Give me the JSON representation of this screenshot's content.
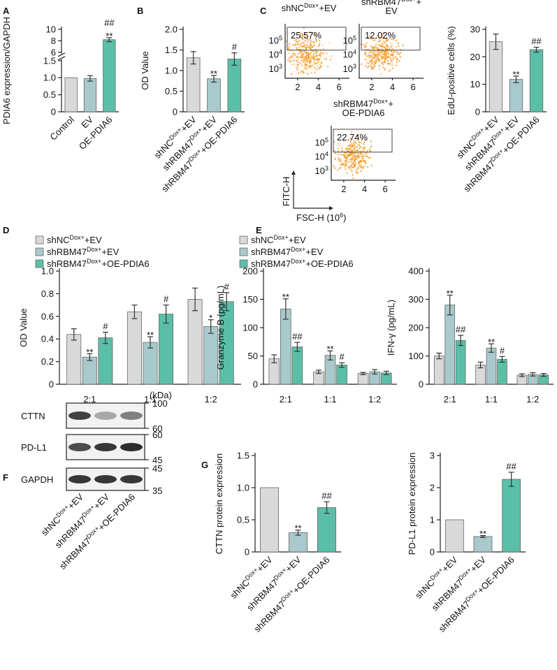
{
  "chart_data": [
    {
      "type": "bar",
      "panel": "A",
      "ylabel": "PDIA6 expression/GAPDH",
      "categories": [
        "Control",
        "EV",
        "OE-PDIA6"
      ],
      "values": [
        1,
        0.98,
        8.2
      ],
      "errors": [
        null,
        0.08,
        0.35
      ],
      "annotations": [
        null,
        null,
        [
          "##",
          "**"
        ]
      ],
      "colors": [
        "#d9d9d9",
        "#a9c9cc",
        "#5bbfa8"
      ],
      "ylim": [
        0,
        10
      ],
      "ybreak": [
        1.5,
        6
      ],
      "yticks": [
        0,
        0.5,
        {
          "value": 1,
          "label": "1.0"
        },
        1.5,
        6,
        8,
        10
      ]
    },
    {
      "type": "bar",
      "panel": "B",
      "ylabel": "OD Value",
      "categories": [
        [
          "shNC",
          "Dox+",
          "+EV"
        ],
        [
          "shRBM47",
          "Dox+",
          "+EV"
        ],
        [
          "shRBM47",
          "Dox+",
          "+OE-PDIA6"
        ]
      ],
      "values": [
        1.31,
        0.8,
        1.28
      ],
      "errors": [
        0.15,
        0.08,
        0.15
      ],
      "annotations": [
        null,
        "**",
        "#"
      ],
      "colors": [
        "#d9d9d9",
        "#a9c9cc",
        "#5bbfa8"
      ],
      "ylim": [
        0,
        2
      ],
      "yticks": [
        0,
        0.5,
        {
          "value": 1,
          "label": "1.0"
        },
        1.5,
        {
          "value": 2,
          "label": "2.0"
        }
      ]
    },
    {
      "type": "bar",
      "panel": "C",
      "ylabel": "EdU-positive cells (%)",
      "categories": [
        [
          "shNC",
          "Dox+",
          "+EV"
        ],
        [
          "shRBM47",
          "Dox+",
          "+EV"
        ],
        [
          "shRBM47",
          "Dox+",
          "+OE-PDIA6"
        ]
      ],
      "values": [
        25.5,
        11.8,
        22.6
      ],
      "errors": [
        2.8,
        1.2,
        0.9
      ],
      "annotations": [
        null,
        "**",
        "##"
      ],
      "colors": [
        "#d9d9d9",
        "#a9c9cc",
        "#5bbfa8"
      ],
      "ylim": [
        0,
        30
      ],
      "yticks": [
        0,
        10,
        20,
        30
      ],
      "flow_plots": [
        {
          "title": [
            [
              "shNC",
              "Dox+",
              "+EV"
            ]
          ],
          "percent": "25.57%"
        },
        {
          "title": [
            [
              "shRBM47",
              "Dox+",
              "+"
            ],
            [
              "EV"
            ]
          ],
          "percent": "12.02%"
        },
        {
          "title": [
            [
              "shRBM47",
              "Dox+",
              "+"
            ],
            [
              "OE-PDIA6"
            ]
          ],
          "percent": "22.74%"
        }
      ],
      "flow_yticks": [
        [
          "10",
          "3"
        ],
        [
          "10",
          "4"
        ],
        [
          "10",
          "5"
        ]
      ],
      "flow_xticks": [
        2,
        4,
        6
      ],
      "flow_xlim": [
        0.8,
        7
      ],
      "flow_xlabel": [
        "FSC-H (10",
        "6",
        ")"
      ],
      "flow_ylabel": "FITC-H"
    },
    {
      "type": "grouped-bar",
      "panel": "D",
      "ylabel": "OD Value",
      "categories": [
        "2:1",
        "1:1",
        "1:2"
      ],
      "ylim": [
        0,
        1
      ],
      "yticks": [
        0,
        0.2,
        0.4,
        0.6,
        0.8,
        {
          "value": 1,
          "label": "1.0"
        }
      ],
      "series": [
        {
          "name": [
            "shNC",
            "Dox+",
            "+EV"
          ],
          "color": "#d9d9d9",
          "values": [
            0.44,
            0.64,
            0.75
          ],
          "errors": [
            0.05,
            0.06,
            0.1
          ],
          "annotations": [
            null,
            null,
            null
          ]
        },
        {
          "name": [
            "shRBM47",
            "Dox+",
            "+EV"
          ],
          "color": "#a9c9cc",
          "values": [
            0.24,
            0.37,
            0.51
          ],
          "errors": [
            0.03,
            0.05,
            0.06
          ],
          "annotations": [
            "**",
            "**",
            "*"
          ]
        },
        {
          "name": [
            "shRBM47",
            "Dox+",
            "+OE-PDIA6"
          ],
          "color": "#5bbfa8",
          "values": [
            0.41,
            0.62,
            0.73
          ],
          "errors": [
            0.05,
            0.08,
            0.08
          ],
          "annotations": [
            "#",
            "#",
            "#"
          ]
        }
      ]
    },
    {
      "type": "grouped-bar",
      "panel": "E",
      "ylabel": "Granzyme B (pg/mL)",
      "categories": [
        "2:1",
        "1:1",
        "1:2"
      ],
      "ylim": [
        0,
        200
      ],
      "yticks": [
        0,
        50,
        100,
        150,
        200
      ],
      "series": [
        {
          "name": [
            "shNC",
            "Dox+",
            "+EV"
          ],
          "color": "#d9d9d9",
          "values": [
            45,
            22,
            19
          ],
          "errors": [
            7,
            3,
            2
          ],
          "annotations": [
            null,
            null,
            null
          ]
        },
        {
          "name": [
            "shRBM47",
            "Dox+",
            "+EV"
          ],
          "color": "#a9c9cc",
          "values": [
            133,
            51,
            22
          ],
          "errors": [
            18,
            8,
            4
          ],
          "annotations": [
            "**",
            "**",
            null
          ]
        },
        {
          "name": [
            "shRBM47",
            "Dox+",
            "+OE-PDIA6"
          ],
          "color": "#5bbfa8",
          "values": [
            66,
            34,
            20
          ],
          "errors": [
            8,
            4,
            3
          ],
          "annotations": [
            "##",
            "#",
            null
          ]
        }
      ]
    },
    {
      "type": "grouped-bar",
      "ylabel": "IFN-γ (pg/mL)",
      "categories": [
        "2:1",
        "1:1",
        "1:2"
      ],
      "ylim": [
        0,
        400
      ],
      "yticks": [
        0,
        100,
        200,
        300,
        400
      ],
      "series": [
        {
          "color": "#d9d9d9",
          "values": [
            100,
            68,
            32
          ],
          "errors": [
            10,
            10,
            5
          ],
          "annotations": [
            null,
            null,
            null
          ]
        },
        {
          "color": "#a9c9cc",
          "values": [
            280,
            128,
            35
          ],
          "errors": [
            35,
            15,
            6
          ],
          "annotations": [
            "**",
            "**",
            null
          ]
        },
        {
          "color": "#5bbfa8",
          "values": [
            155,
            88,
            33
          ],
          "errors": [
            18,
            10,
            5
          ],
          "annotations": [
            "##",
            "#",
            null
          ]
        }
      ]
    },
    {
      "type": "bar",
      "panel": "G",
      "ylabel": "CTTN protein expression",
      "categories": [
        [
          "shNC",
          "Dox+",
          "+EV"
        ],
        [
          "shRBM47",
          "Dox+",
          "+EV"
        ],
        [
          "shRBM47",
          "Dox+",
          "+OE-PDIA6"
        ]
      ],
      "values": [
        1,
        0.3,
        0.69
      ],
      "errors": [
        null,
        0.04,
        0.09
      ],
      "annotations": [
        null,
        "**",
        "##"
      ],
      "colors": [
        "#d9d9d9",
        "#a9c9cc",
        "#5bbfa8"
      ],
      "ylim": [
        0,
        1.5
      ],
      "yticks": [
        0,
        0.5,
        {
          "value": 1,
          "label": "1.0"
        },
        1.5
      ]
    },
    {
      "type": "bar",
      "ylabel": "PD-L1 protein expression",
      "categories": [
        [
          "shNC",
          "Dox+",
          "+EV"
        ],
        [
          "shRBM47",
          "Dox+",
          "+EV"
        ],
        [
          "shRBM47",
          "Dox+",
          "+OE-PDIA6"
        ]
      ],
      "values": [
        1,
        0.48,
        2.26
      ],
      "errors": [
        null,
        0.03,
        0.22
      ],
      "annotations": [
        null,
        "**",
        "##"
      ],
      "colors": [
        "#d9d9d9",
        "#a9c9cc",
        "#5bbfa8"
      ],
      "ylim": [
        0,
        3
      ],
      "yticks": [
        0,
        1,
        2,
        3
      ]
    }
  ],
  "blot": {
    "panel": "F",
    "unit": "(kDa)",
    "rows": [
      {
        "name": "CTTN",
        "markers": [
          100,
          60
        ]
      },
      {
        "name": "PD-L1",
        "markers": [
          60,
          45
        ]
      },
      {
        "name": "GAPDH",
        "markers": [
          45,
          35
        ]
      }
    ],
    "lanes": [
      [
        "shNC",
        "Dox+",
        "+EV"
      ],
      [
        "shRBM47",
        "Dox+",
        "+EV"
      ],
      [
        "shRBM47",
        "Dox+",
        "+OE-PDIA6"
      ]
    ]
  }
}
